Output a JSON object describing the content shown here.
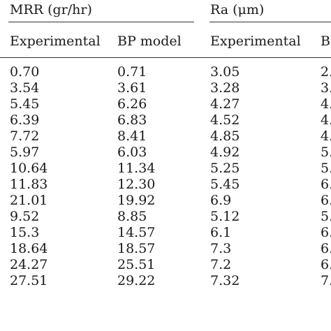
{
  "groups": {
    "mrr": "MRR (gr/hr)",
    "ra": "Ra (μm)"
  },
  "columns": [
    "Experimental",
    "BP model",
    "Experimental",
    "B"
  ],
  "rows": [
    [
      "0.70",
      "0.71",
      "3.05",
      "2."
    ],
    [
      "3.54",
      "3.61",
      "3.28",
      "3."
    ],
    [
      "5.45",
      "6.26",
      "4.27",
      "4."
    ],
    [
      "6.39",
      "6.83",
      "4.52",
      "4."
    ],
    [
      "7.72",
      "8.41",
      "4.85",
      "4."
    ],
    [
      "5.97",
      "6.03",
      "4.92",
      "5."
    ],
    [
      "10.64",
      "11.34",
      "5.25",
      "5."
    ],
    [
      "11.83",
      "12.30",
      "5.45",
      "6."
    ],
    [
      "21.01",
      "19.92",
      "6.9",
      "6."
    ],
    [
      "9.52",
      "8.85",
      "5.12",
      "5."
    ],
    [
      "15.3",
      "14.57",
      "6.1",
      "6."
    ],
    [
      "18.64",
      "18.57",
      "7.3",
      "6."
    ],
    [
      "24.27",
      "25.51",
      "7.2",
      "6."
    ],
    [
      "27.51",
      "29.22",
      "7.32",
      "7."
    ]
  ]
}
